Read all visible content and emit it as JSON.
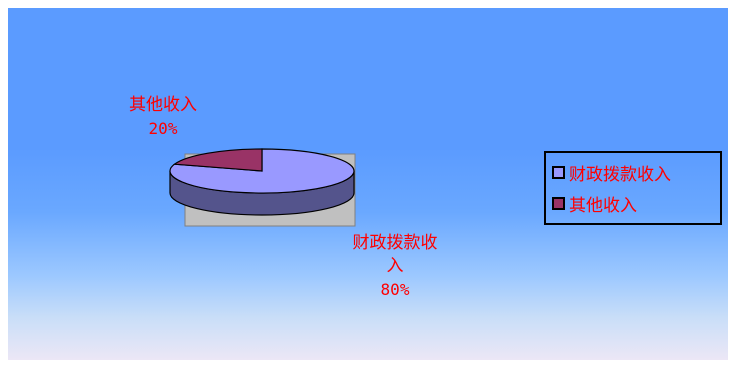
{
  "chart_data": {
    "type": "pie",
    "style": "3d",
    "categories": [
      "财政拨款收入",
      "其他收入"
    ],
    "values": [
      80,
      20
    ],
    "colors": [
      "#9999ff",
      "#993366"
    ],
    "data_labels": [
      {
        "name": "财政拨款收",
        "name_wrap": "入",
        "value": "80%"
      },
      {
        "name": "其他收入",
        "value": "20%"
      }
    ],
    "legend": {
      "position": "right",
      "items": [
        "财政拨款收入",
        "其他收入"
      ]
    }
  },
  "colors": {
    "label_text": "#ff0000",
    "plot_area": "#c0c0c0",
    "background_top": "#5b9bff",
    "background_bottom": "#ece7f6"
  }
}
